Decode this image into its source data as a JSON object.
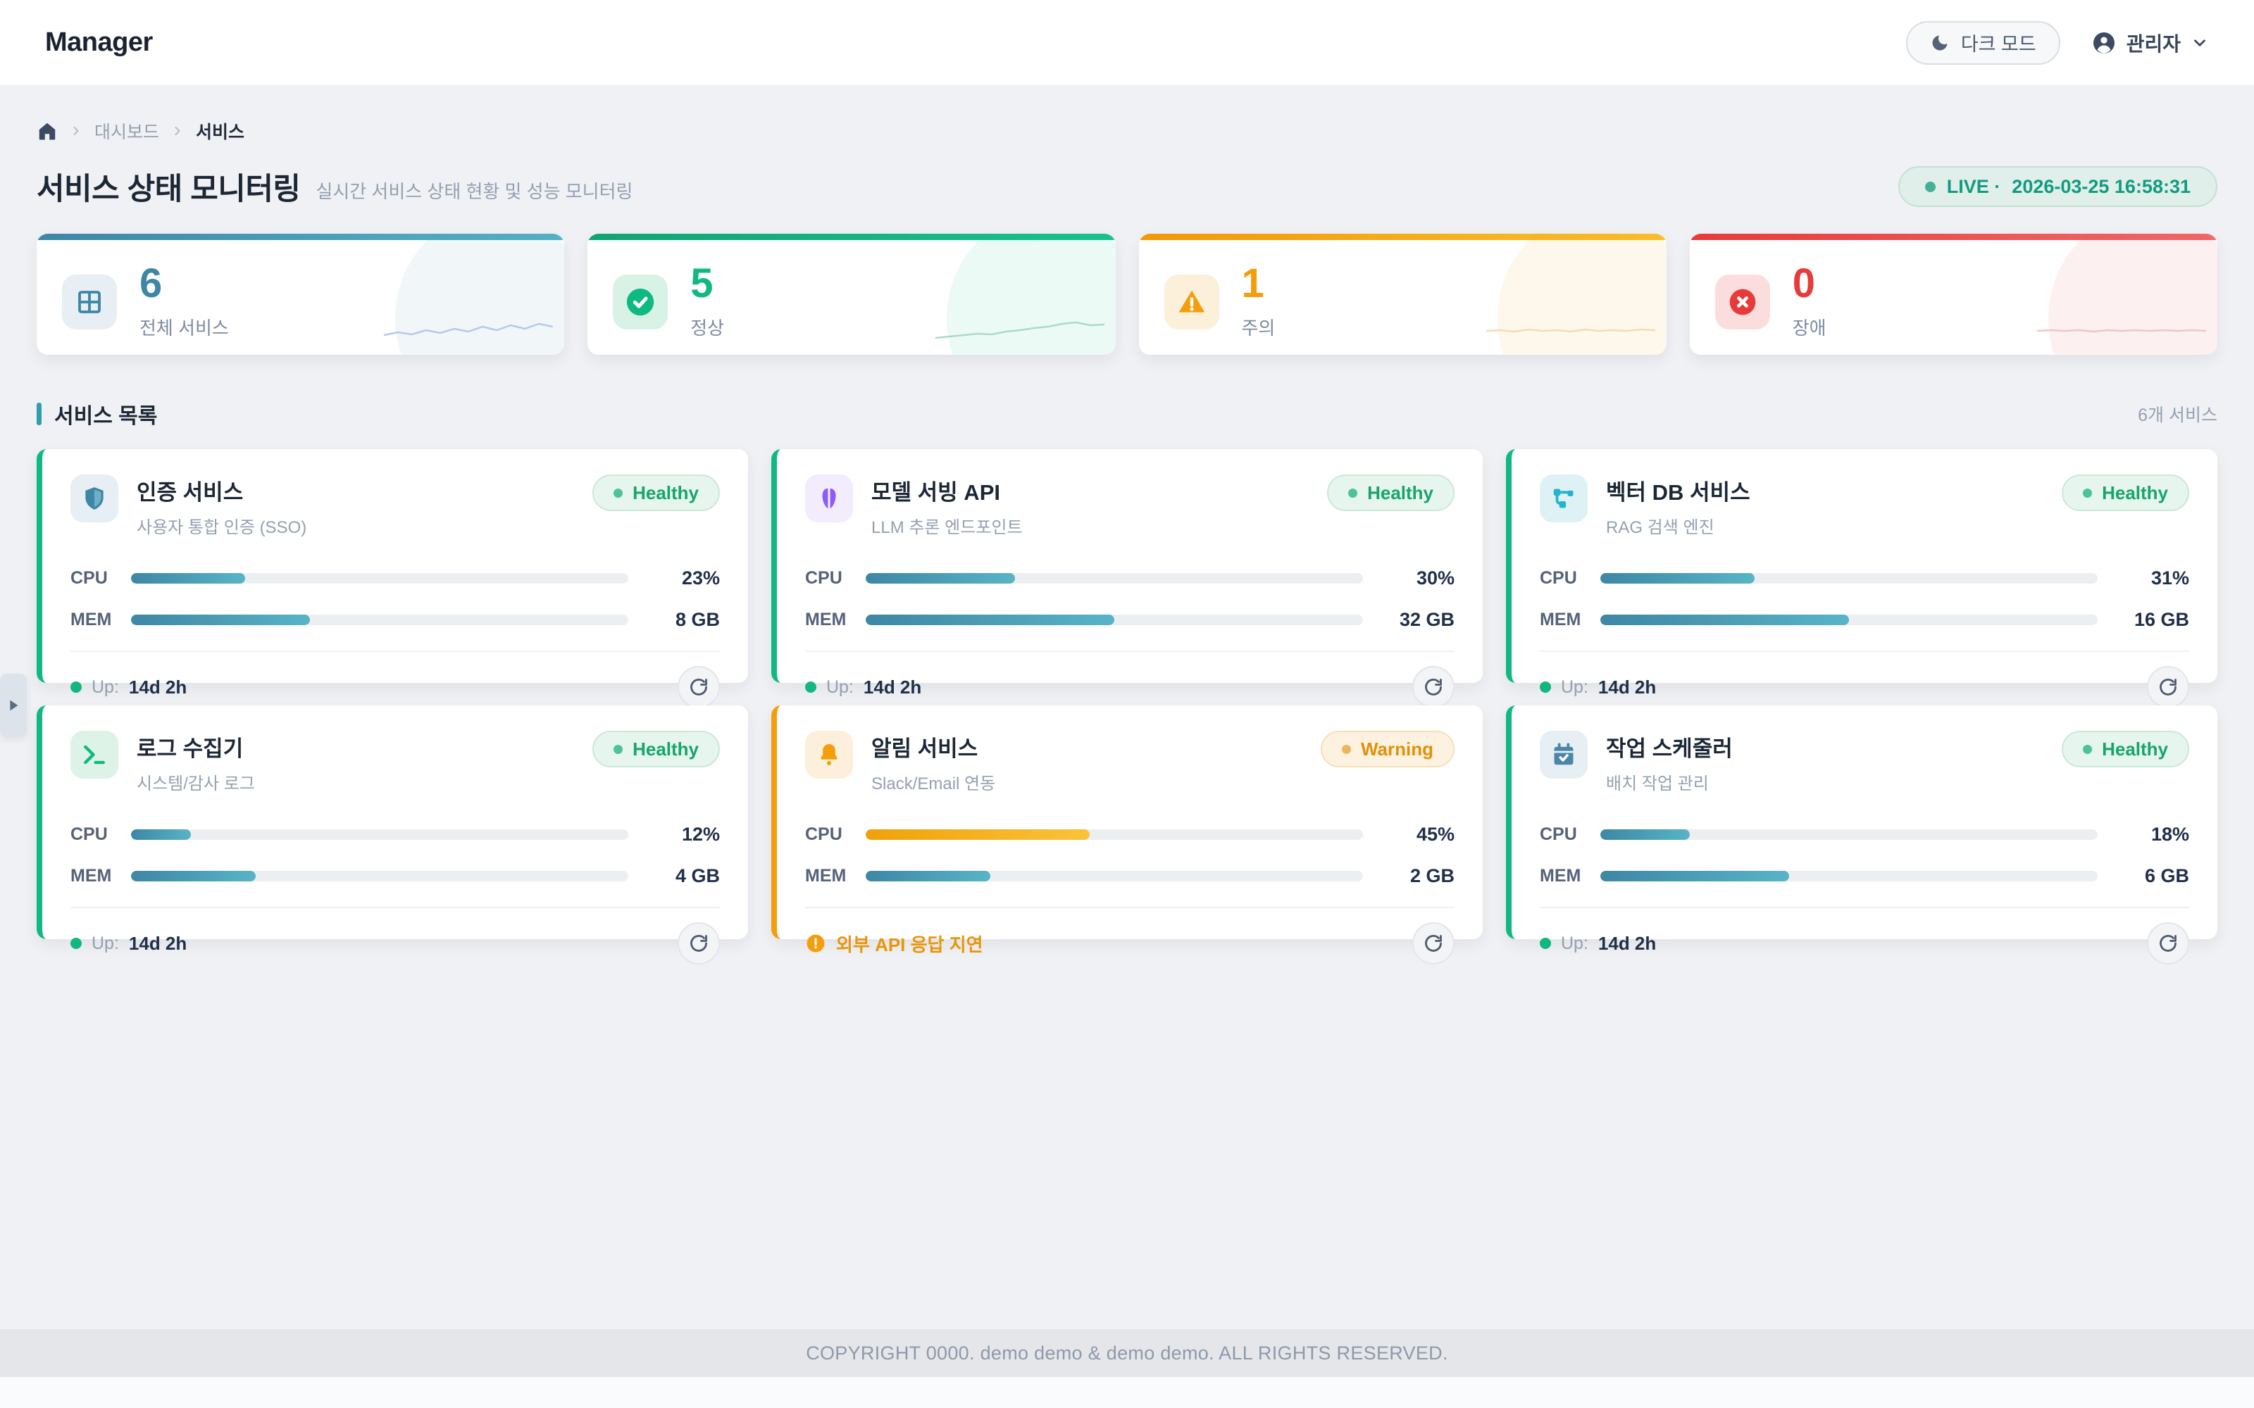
{
  "header": {
    "logo": "Manager",
    "dark_mode_label": "다크 모드",
    "user_label": "관리자"
  },
  "breadcrumb": {
    "items": [
      "대시보드",
      "서비스"
    ]
  },
  "page": {
    "title": "서비스 상태 모니터링",
    "subtitle": "실시간 서비스 상태 현황 및 성능 모니터링",
    "live_label": "LIVE ·",
    "live_time": "2026-03-25 16:58:31"
  },
  "stats": [
    {
      "value": "6",
      "label": "전체 서비스",
      "icon": "grid-icon",
      "color": "#3d87a5"
    },
    {
      "value": "5",
      "label": "정상",
      "icon": "check-circle-icon",
      "color": "#10b981"
    },
    {
      "value": "1",
      "label": "주의",
      "icon": "warning-triangle-icon",
      "color": "#f59e0b"
    },
    {
      "value": "0",
      "label": "장애",
      "icon": "x-circle-icon",
      "color": "#e73b3b"
    }
  ],
  "list_header": {
    "title": "서비스 목록",
    "count": "6개 서비스"
  },
  "labels": {
    "cpu": "CPU",
    "mem": "MEM",
    "up": "Up:"
  },
  "services": [
    {
      "name": "인증 서비스",
      "desc": "사용자 통합 인증 (SSO)",
      "status": "Healthy",
      "cpu_value": "23%",
      "cpu_pct": 23,
      "mem_value": "8 GB",
      "mem_pct": 36,
      "uptime": "14d 2h",
      "icon": "shield-icon",
      "accent": "#10b981"
    },
    {
      "name": "모델 서빙 API",
      "desc": "LLM 추론 엔드포인트",
      "status": "Healthy",
      "cpu_value": "30%",
      "cpu_pct": 30,
      "mem_value": "32 GB",
      "mem_pct": 50,
      "uptime": "14d 2h",
      "icon": "brain-icon",
      "accent": "#10b981"
    },
    {
      "name": "벡터 DB 서비스",
      "desc": "RAG 검색 엔진",
      "status": "Healthy",
      "cpu_value": "31%",
      "cpu_pct": 31,
      "mem_value": "16 GB",
      "mem_pct": 50,
      "uptime": "14d 2h",
      "icon": "network-icon",
      "accent": "#10b981"
    },
    {
      "name": "로그 수집기",
      "desc": "시스템/감사 로그",
      "status": "Healthy",
      "cpu_value": "12%",
      "cpu_pct": 12,
      "mem_value": "4 GB",
      "mem_pct": 25,
      "uptime": "14d 2h",
      "icon": "terminal-icon",
      "accent": "#10b981"
    },
    {
      "name": "알림 서비스",
      "desc": "Slack/Email 연동",
      "status": "Warning",
      "cpu_value": "45%",
      "cpu_pct": 45,
      "mem_value": "2 GB",
      "mem_pct": 25,
      "alert": "외부 API 응답 지연",
      "icon": "bell-icon",
      "accent": "#f59e0b"
    },
    {
      "name": "작업 스케줄러",
      "desc": "배치 작업 관리",
      "status": "Healthy",
      "cpu_value": "18%",
      "cpu_pct": 18,
      "mem_value": "6 GB",
      "mem_pct": 38,
      "uptime": "14d 2h",
      "icon": "calendar-check-icon",
      "accent": "#10b981"
    }
  ],
  "footer": {
    "copyright": "COPYRIGHT 0000. demo demo & demo demo. ALL RIGHTS RESERVED."
  }
}
